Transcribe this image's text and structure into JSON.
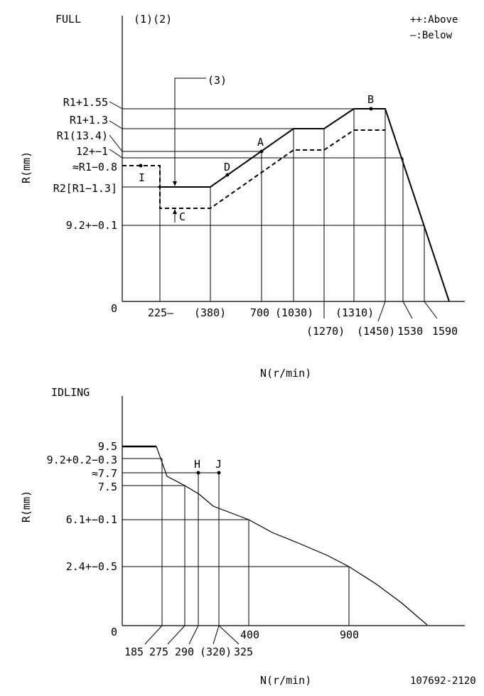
{
  "full": {
    "title": "FULL",
    "notes_12": "(1)(2)",
    "note_3": "(3)",
    "legend_above": "++:Above",
    "legend_below": "—:Below",
    "ylabel": "R(mm)",
    "xlabel": "N(r/min)",
    "origin": "0",
    "y_labels": {
      "r1_155": "R1+1.55",
      "r1_13": "R1+1.3",
      "r1_134": "R1(13.4)",
      "v12_1": "12+−1",
      "r1_08": "≈R1−0.8",
      "r2": "R2[R1−1.3]",
      "v92": "9.2+−0.1"
    },
    "x_labels": {
      "x225": "225—",
      "x380": "(380)",
      "x700": "700",
      "x1030": "(1030)",
      "x1270": "(1270)",
      "x1310": "(1310)",
      "x1450": "(1450)",
      "x1530": "1530",
      "x1590": "1590"
    },
    "points": {
      "A": "A",
      "B": "B",
      "C": "C",
      "D": "D",
      "I": "I"
    }
  },
  "idling": {
    "title": "IDLING",
    "ylabel": "R(mm)",
    "xlabel": "N(r/min)",
    "origin": "0",
    "y_labels": {
      "v95": "9.5",
      "v92": "9.2+0.2−0.3",
      "v77": "≈7.7",
      "v75": "7.5",
      "v61": "6.1+−0.1",
      "v24": "2.4+−0.5"
    },
    "x_labels": {
      "x185": "185",
      "x275": "275",
      "x290": "290",
      "x320": "(320)",
      "x325": "325",
      "x400": "400",
      "x900": "900"
    },
    "points": {
      "H": "H",
      "J": "J"
    }
  },
  "doc_id": "107692-2120"
}
